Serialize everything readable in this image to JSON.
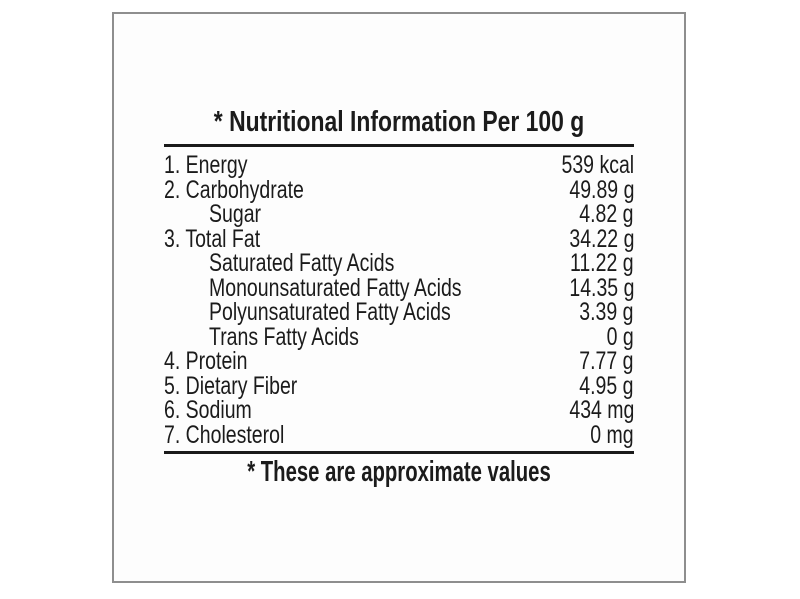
{
  "label": {
    "title": "* Nutritional Information Per 100 g",
    "footnote": "* These are approximate values",
    "rows": [
      {
        "name": "1. Energy",
        "value": "539 kcal",
        "indent": false
      },
      {
        "name": "2. Carbohydrate",
        "value": "49.89 g",
        "indent": false
      },
      {
        "name": "Sugar",
        "value": "4.82 g",
        "indent": true
      },
      {
        "name": "3. Total Fat",
        "value": "34.22 g",
        "indent": false
      },
      {
        "name": "Saturated Fatty Acids",
        "value": "11.22 g",
        "indent": true
      },
      {
        "name": "Monounsaturated Fatty Acids",
        "value": "14.35 g",
        "indent": true
      },
      {
        "name": "Polyunsaturated Fatty Acids",
        "value": "3.39 g",
        "indent": true
      },
      {
        "name": "Trans Fatty Acids",
        "value": "0 g",
        "indent": true
      },
      {
        "name": "4. Protein",
        "value": "7.77 g",
        "indent": false
      },
      {
        "name": "5. Dietary Fiber",
        "value": "4.95 g",
        "indent": false
      },
      {
        "name": "6. Sodium",
        "value": "434 mg",
        "indent": false
      },
      {
        "name": "7. Cholesterol",
        "value": "0 mg",
        "indent": false
      }
    ],
    "colors": {
      "text": "#1b1b1b",
      "rule": "#1a1a1a",
      "border": "#8e8e8e"
    }
  }
}
